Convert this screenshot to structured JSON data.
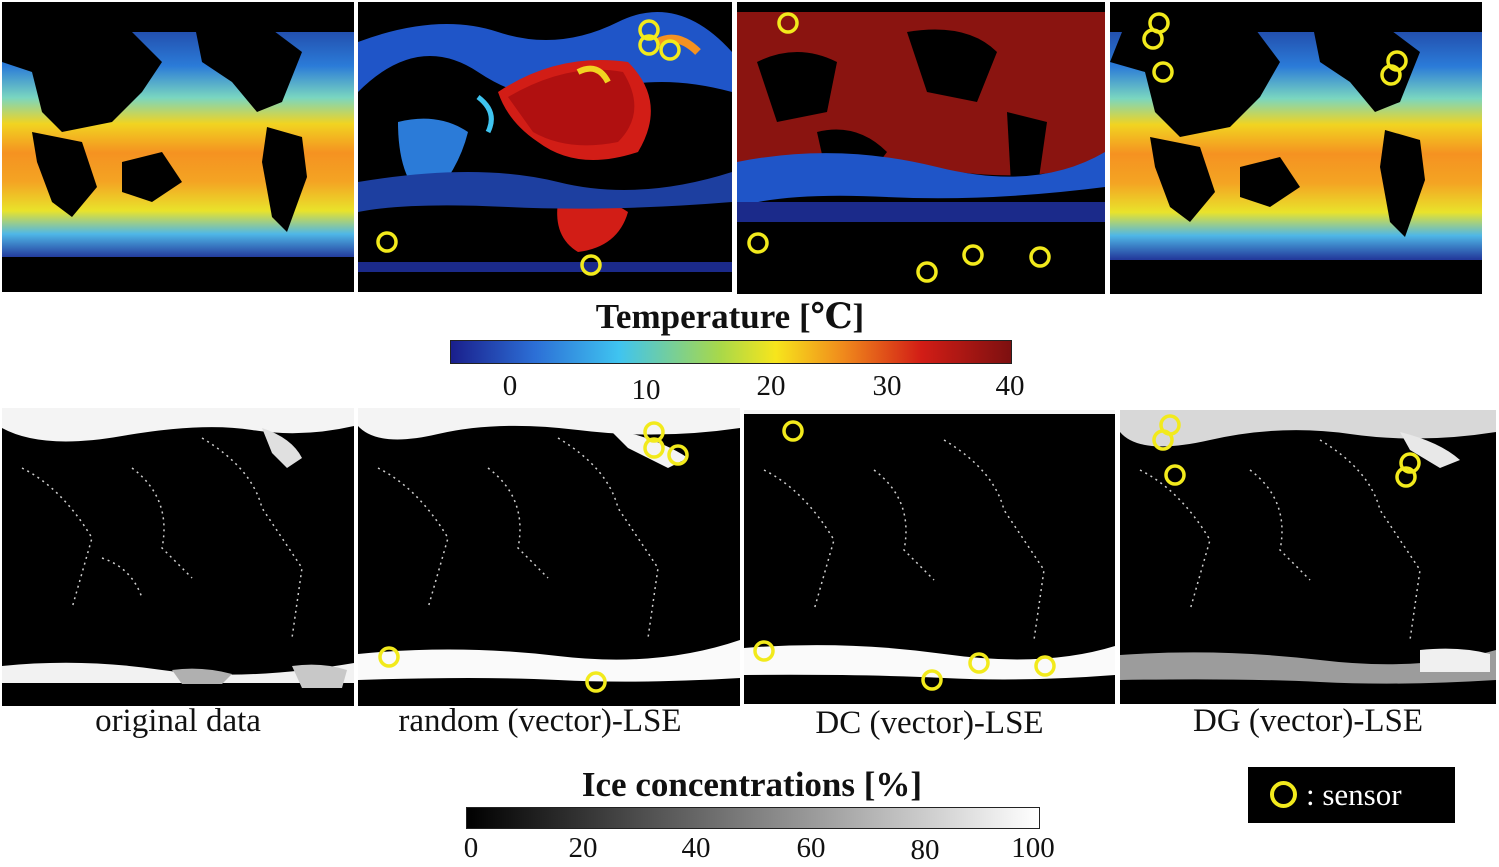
{
  "temperature_colorbar": {
    "title": "Temperature [℃]",
    "ticks": [
      "0",
      "10",
      "20",
      "30",
      "40"
    ],
    "colors": [
      "#1a1f8c",
      "#2c6fd6",
      "#3fc4f0",
      "#a8d84a",
      "#f7e51c",
      "#f08a1c",
      "#d21d16",
      "#7d1010"
    ]
  },
  "ice_colorbar": {
    "title": "Ice concentrations [%]",
    "ticks": [
      "0",
      "20",
      "40",
      "60",
      "80",
      "100"
    ]
  },
  "panel_labels": [
    "original data",
    "random (vector)-LSE",
    "DC (vector)-LSE",
    "DG (vector)-LSE"
  ],
  "legend": {
    "text": ": sensor",
    "sensor_color": "#f2ea1c"
  }
}
